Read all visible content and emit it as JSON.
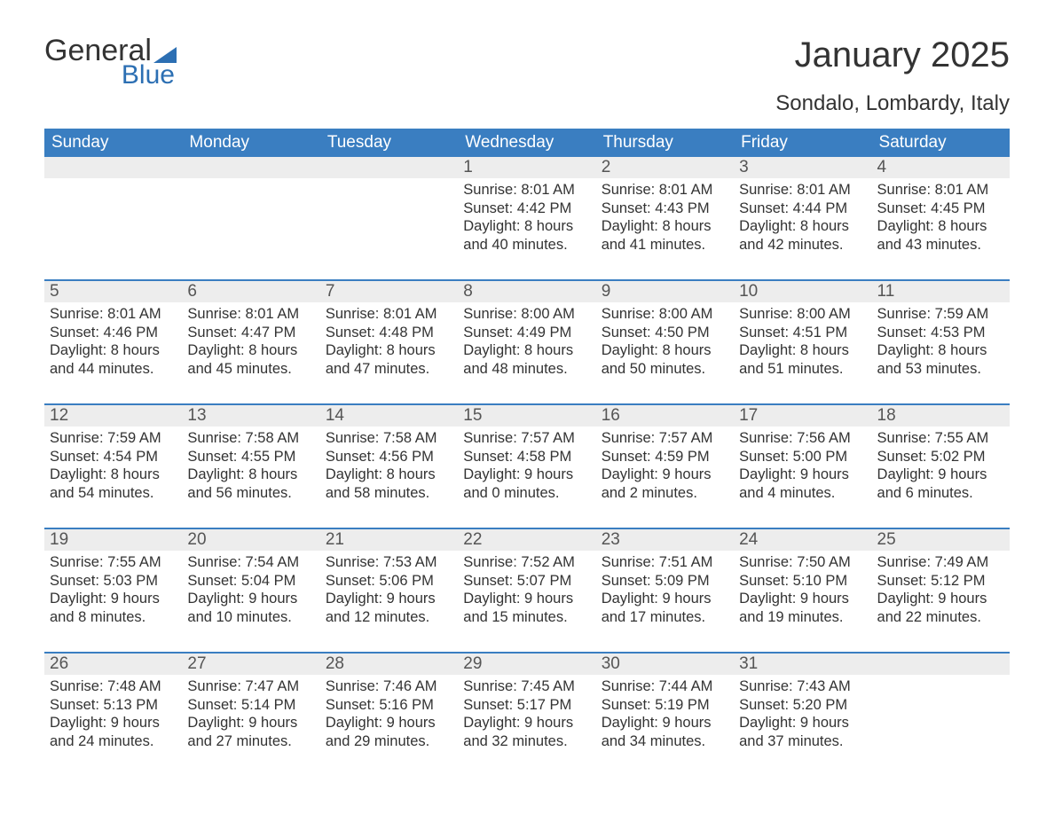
{
  "brand": {
    "line1": "General",
    "line2": "Blue",
    "accent_color": "#2c6fb3"
  },
  "title": "January 2025",
  "location": "Sondalo, Lombardy, Italy",
  "colors": {
    "header_bg": "#3a7ec1",
    "header_text": "#ffffff",
    "daynum_bg": "#ededed",
    "daynum_text": "#555555",
    "body_text": "#333333",
    "page_bg": "#ffffff",
    "week_border": "#3a7ec1"
  },
  "typography": {
    "title_fontsize": 40,
    "location_fontsize": 24,
    "header_fontsize": 19,
    "daynum_fontsize": 19,
    "body_fontsize": 16.5
  },
  "day_headers": [
    "Sunday",
    "Monday",
    "Tuesday",
    "Wednesday",
    "Thursday",
    "Friday",
    "Saturday"
  ],
  "labels": {
    "sunrise": "Sunrise:",
    "sunset": "Sunset:",
    "daylight": "Daylight:"
  },
  "weeks": [
    [
      {
        "blank": true
      },
      {
        "blank": true
      },
      {
        "blank": true
      },
      {
        "day": "1",
        "sunrise": "8:01 AM",
        "sunset": "4:42 PM",
        "daylight1": "8 hours",
        "daylight2": "and 40 minutes."
      },
      {
        "day": "2",
        "sunrise": "8:01 AM",
        "sunset": "4:43 PM",
        "daylight1": "8 hours",
        "daylight2": "and 41 minutes."
      },
      {
        "day": "3",
        "sunrise": "8:01 AM",
        "sunset": "4:44 PM",
        "daylight1": "8 hours",
        "daylight2": "and 42 minutes."
      },
      {
        "day": "4",
        "sunrise": "8:01 AM",
        "sunset": "4:45 PM",
        "daylight1": "8 hours",
        "daylight2": "and 43 minutes."
      }
    ],
    [
      {
        "day": "5",
        "sunrise": "8:01 AM",
        "sunset": "4:46 PM",
        "daylight1": "8 hours",
        "daylight2": "and 44 minutes."
      },
      {
        "day": "6",
        "sunrise": "8:01 AM",
        "sunset": "4:47 PM",
        "daylight1": "8 hours",
        "daylight2": "and 45 minutes."
      },
      {
        "day": "7",
        "sunrise": "8:01 AM",
        "sunset": "4:48 PM",
        "daylight1": "8 hours",
        "daylight2": "and 47 minutes."
      },
      {
        "day": "8",
        "sunrise": "8:00 AM",
        "sunset": "4:49 PM",
        "daylight1": "8 hours",
        "daylight2": "and 48 minutes."
      },
      {
        "day": "9",
        "sunrise": "8:00 AM",
        "sunset": "4:50 PM",
        "daylight1": "8 hours",
        "daylight2": "and 50 minutes."
      },
      {
        "day": "10",
        "sunrise": "8:00 AM",
        "sunset": "4:51 PM",
        "daylight1": "8 hours",
        "daylight2": "and 51 minutes."
      },
      {
        "day": "11",
        "sunrise": "7:59 AM",
        "sunset": "4:53 PM",
        "daylight1": "8 hours",
        "daylight2": "and 53 minutes."
      }
    ],
    [
      {
        "day": "12",
        "sunrise": "7:59 AM",
        "sunset": "4:54 PM",
        "daylight1": "8 hours",
        "daylight2": "and 54 minutes."
      },
      {
        "day": "13",
        "sunrise": "7:58 AM",
        "sunset": "4:55 PM",
        "daylight1": "8 hours",
        "daylight2": "and 56 minutes."
      },
      {
        "day": "14",
        "sunrise": "7:58 AM",
        "sunset": "4:56 PM",
        "daylight1": "8 hours",
        "daylight2": "and 58 minutes."
      },
      {
        "day": "15",
        "sunrise": "7:57 AM",
        "sunset": "4:58 PM",
        "daylight1": "9 hours",
        "daylight2": "and 0 minutes."
      },
      {
        "day": "16",
        "sunrise": "7:57 AM",
        "sunset": "4:59 PM",
        "daylight1": "9 hours",
        "daylight2": "and 2 minutes."
      },
      {
        "day": "17",
        "sunrise": "7:56 AM",
        "sunset": "5:00 PM",
        "daylight1": "9 hours",
        "daylight2": "and 4 minutes."
      },
      {
        "day": "18",
        "sunrise": "7:55 AM",
        "sunset": "5:02 PM",
        "daylight1": "9 hours",
        "daylight2": "and 6 minutes."
      }
    ],
    [
      {
        "day": "19",
        "sunrise": "7:55 AM",
        "sunset": "5:03 PM",
        "daylight1": "9 hours",
        "daylight2": "and 8 minutes."
      },
      {
        "day": "20",
        "sunrise": "7:54 AM",
        "sunset": "5:04 PM",
        "daylight1": "9 hours",
        "daylight2": "and 10 minutes."
      },
      {
        "day": "21",
        "sunrise": "7:53 AM",
        "sunset": "5:06 PM",
        "daylight1": "9 hours",
        "daylight2": "and 12 minutes."
      },
      {
        "day": "22",
        "sunrise": "7:52 AM",
        "sunset": "5:07 PM",
        "daylight1": "9 hours",
        "daylight2": "and 15 minutes."
      },
      {
        "day": "23",
        "sunrise": "7:51 AM",
        "sunset": "5:09 PM",
        "daylight1": "9 hours",
        "daylight2": "and 17 minutes."
      },
      {
        "day": "24",
        "sunrise": "7:50 AM",
        "sunset": "5:10 PM",
        "daylight1": "9 hours",
        "daylight2": "and 19 minutes."
      },
      {
        "day": "25",
        "sunrise": "7:49 AM",
        "sunset": "5:12 PM",
        "daylight1": "9 hours",
        "daylight2": "and 22 minutes."
      }
    ],
    [
      {
        "day": "26",
        "sunrise": "7:48 AM",
        "sunset": "5:13 PM",
        "daylight1": "9 hours",
        "daylight2": "and 24 minutes."
      },
      {
        "day": "27",
        "sunrise": "7:47 AM",
        "sunset": "5:14 PM",
        "daylight1": "9 hours",
        "daylight2": "and 27 minutes."
      },
      {
        "day": "28",
        "sunrise": "7:46 AM",
        "sunset": "5:16 PM",
        "daylight1": "9 hours",
        "daylight2": "and 29 minutes."
      },
      {
        "day": "29",
        "sunrise": "7:45 AM",
        "sunset": "5:17 PM",
        "daylight1": "9 hours",
        "daylight2": "and 32 minutes."
      },
      {
        "day": "30",
        "sunrise": "7:44 AM",
        "sunset": "5:19 PM",
        "daylight1": "9 hours",
        "daylight2": "and 34 minutes."
      },
      {
        "day": "31",
        "sunrise": "7:43 AM",
        "sunset": "5:20 PM",
        "daylight1": "9 hours",
        "daylight2": "and 37 minutes."
      },
      {
        "blank": true
      }
    ]
  ]
}
